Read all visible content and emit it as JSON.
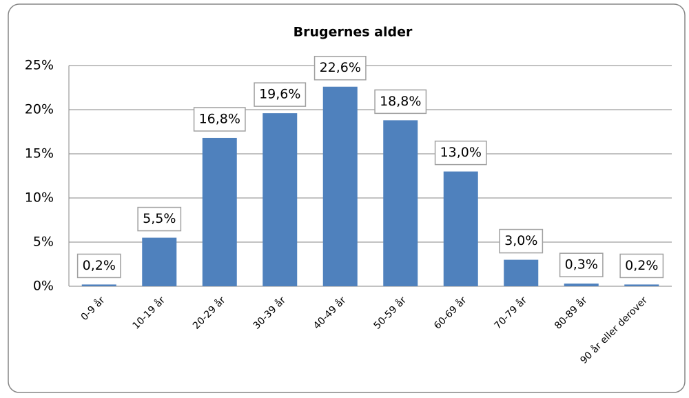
{
  "chart_data": {
    "type": "bar",
    "title": "Brugernes alder",
    "categories": [
      "0-9 år",
      "10-19 år",
      "20-29 år",
      "30-39 år",
      "40-49 år",
      "50-59 år",
      "60-69 år",
      "70-79 år",
      "80-89 år",
      "90 år eller derover"
    ],
    "values": [
      0.2,
      5.5,
      16.8,
      19.6,
      22.6,
      18.8,
      13.0,
      3.0,
      0.3,
      0.2
    ],
    "value_labels": [
      "0,2%",
      "5,5%",
      "16,8%",
      "19,6%",
      "22,6%",
      "18,8%",
      "13,0%",
      "3,0%",
      "0,3%",
      "0,2%"
    ],
    "color": "#4f81bd",
    "ylim": [
      0,
      25
    ],
    "yticks": [
      {
        "value": 0,
        "label": "0%"
      },
      {
        "value": 5,
        "label": "5%"
      },
      {
        "value": 10,
        "label": "10%"
      },
      {
        "value": 15,
        "label": "15%"
      },
      {
        "value": 20,
        "label": "20%"
      },
      {
        "value": 25,
        "label": "25%"
      }
    ],
    "grid": true
  }
}
